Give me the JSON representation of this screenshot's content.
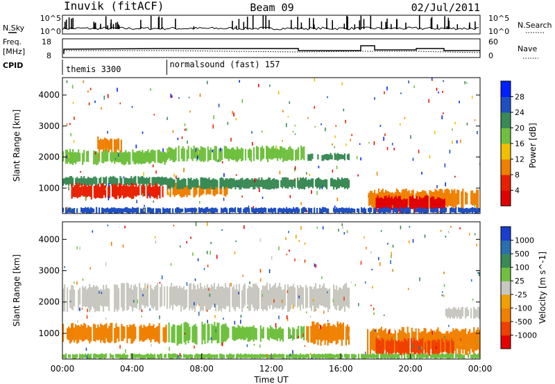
{
  "header": {
    "station": "Inuvik (fitACF)",
    "beam": "Beam 09",
    "date": "02/Jul/2011"
  },
  "left_labels": {
    "nsky": "N.Sky",
    "freq_line1": "Freq.",
    "freq_line2": "[MHz]",
    "cpid": "CPID"
  },
  "right_labels": {
    "nsearch": "N.Search",
    "nave": "Nave"
  },
  "nsky_panel": {
    "left_ticks": [
      "10^5",
      "10^0"
    ],
    "right_ticks": [
      "10^5",
      "10^0"
    ]
  },
  "freq_panel": {
    "left_ticks": [
      "18",
      "8"
    ],
    "right_ticks": [
      "60",
      "0"
    ]
  },
  "cpid_panel": {
    "segments": [
      {
        "label": "themis 3300",
        "start_hour": 0,
        "end_hour": 6
      },
      {
        "label": "normalsound (fast) 157",
        "start_hour": 6,
        "end_hour": 24
      }
    ]
  },
  "chart_data": [
    {
      "type": "heatmap",
      "name": "power-panel",
      "ylabel": "Slant Range [km]",
      "y_ticks": [
        "1000",
        "2000",
        "3000",
        "4000"
      ],
      "y_tick_values": [
        1000,
        2000,
        3000,
        4000
      ],
      "ylim": [
        180,
        4560
      ],
      "xlim": [
        0,
        24
      ],
      "colorbar": {
        "label": "Power [dB]",
        "tick_labels": [
          "4",
          "8",
          "12",
          "16",
          "20",
          "24",
          "28"
        ],
        "colors": [
          "#0020ff",
          "#2050c0",
          "#3a8a55",
          "#70c040",
          "#f0c000",
          "#f08000",
          "#e82000",
          "#e00000"
        ]
      },
      "regions": [
        {
          "t0": 0.0,
          "t1": 6.0,
          "r0": 1800,
          "r1": 2200,
          "color": "#70c040"
        },
        {
          "t0": 2.0,
          "t1": 3.5,
          "r0": 2200,
          "r1": 2600,
          "color": "#f08000"
        },
        {
          "t0": 6.0,
          "t1": 14.0,
          "r0": 1900,
          "r1": 2300,
          "color": "#70c040"
        },
        {
          "t0": 14.0,
          "t1": 16.5,
          "r0": 1900,
          "r1": 2100,
          "color": "#3a8a55"
        },
        {
          "t0": 0.0,
          "t1": 6.0,
          "r0": 1100,
          "r1": 1350,
          "color": "#3a8a55"
        },
        {
          "t0": 0.5,
          "t1": 5.8,
          "r0": 700,
          "r1": 1100,
          "color": "#e82000"
        },
        {
          "t0": 6.0,
          "t1": 9.5,
          "r0": 750,
          "r1": 1150,
          "color": "#f08000"
        },
        {
          "t0": 6.0,
          "t1": 16.5,
          "r0": 1000,
          "r1": 1300,
          "color": "#3a8a55"
        },
        {
          "t0": 17.5,
          "t1": 24.0,
          "r0": 400,
          "r1": 900,
          "color": "#f08000"
        },
        {
          "t0": 18.0,
          "t1": 22.0,
          "r0": 280,
          "r1": 700,
          "color": "#e00000"
        },
        {
          "t0": 0.0,
          "t1": 24.0,
          "r0": 200,
          "r1": 360,
          "color": "#2050c0"
        }
      ]
    },
    {
      "type": "heatmap",
      "name": "velocity-panel",
      "ylabel": "Slant Range [km]",
      "xlabel": "Time UT",
      "x_ticks": [
        "00:00",
        "04:00",
        "08:00",
        "12:00",
        "16:00",
        "20:00",
        "00:00"
      ],
      "x_tick_values": [
        0,
        4,
        8,
        12,
        16,
        20,
        24
      ],
      "y_ticks": [
        "1000",
        "2000",
        "3000",
        "4000"
      ],
      "y_tick_values": [
        1000,
        2000,
        3000,
        4000
      ],
      "ylim": [
        180,
        4560
      ],
      "xlim": [
        0,
        24
      ],
      "colorbar": {
        "label": "Velocity [m s^-1]",
        "tick_labels": [
          "1000",
          "500",
          "100",
          "25",
          "-25",
          "-100",
          "-500",
          "-1000"
        ],
        "colors": [
          "#1a3fcc",
          "#2a6fb0",
          "#3a8a55",
          "#70c040",
          "#c8c8c0",
          "#f0a000",
          "#f08000",
          "#f04000",
          "#e80000"
        ]
      },
      "regions": [
        {
          "t0": 0.0,
          "t1": 16.5,
          "r0": 1800,
          "r1": 2500,
          "color": "#c8c8c0"
        },
        {
          "t0": 22.0,
          "t1": 24.0,
          "r0": 1500,
          "r1": 1800,
          "color": "#c8c8c0"
        },
        {
          "t0": 0.0,
          "t1": 6.0,
          "r0": 750,
          "r1": 1250,
          "color": "#f08000"
        },
        {
          "t0": 6.0,
          "t1": 9.5,
          "r0": 700,
          "r1": 1300,
          "color": "#70c040"
        },
        {
          "t0": 9.5,
          "t1": 14.0,
          "r0": 800,
          "r1": 1200,
          "color": "#70c040"
        },
        {
          "t0": 14.0,
          "t1": 16.5,
          "r0": 700,
          "r1": 1300,
          "color": "#f08000"
        },
        {
          "t0": 17.5,
          "t1": 24.0,
          "r0": 400,
          "r1": 1100,
          "color": "#f08000"
        },
        {
          "t0": 18.0,
          "t1": 22.5,
          "r0": 350,
          "r1": 800,
          "color": "#f04000"
        },
        {
          "t0": 0.0,
          "t1": 24.0,
          "r0": 200,
          "r1": 340,
          "color": "#70c040"
        }
      ]
    }
  ]
}
